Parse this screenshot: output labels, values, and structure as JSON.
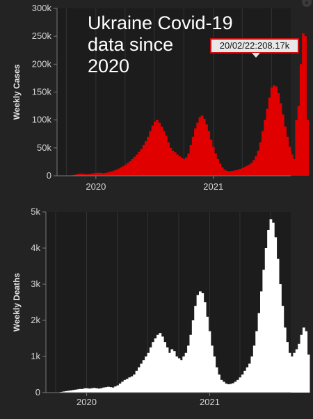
{
  "chart_data": [
    {
      "type": "bar",
      "title": "Ukraine Covid-19\ndata since\n2020",
      "ylabel": "Weekly Cases",
      "xlabel": "",
      "xlim": [
        "2019-09-02",
        "2021-08-23"
      ],
      "ylim": [
        0,
        300000
      ],
      "yticks": [
        0,
        50000,
        100000,
        150000,
        200000,
        250000,
        300000
      ],
      "ytick_labels": [
        "0",
        "50k",
        "100k",
        "150k",
        "200k",
        "250k",
        "300k"
      ],
      "xticks": [
        "2020-01-01",
        "2021-01-01"
      ],
      "xtick_labels": [
        "2020",
        "2021"
      ],
      "tooltip": {
        "date": "20/02/22",
        "value": 208170,
        "label": "20/02/22:208.17k"
      },
      "bar_color": "#e00000",
      "grid": "vertical",
      "x_start": "2019-09-02",
      "x_step_days": 7,
      "values": [
        0,
        0,
        0,
        0,
        200,
        400,
        800,
        1500,
        2500,
        3500,
        4000,
        3800,
        3200,
        3000,
        3500,
        4000,
        4500,
        5000,
        5500,
        5000,
        4500,
        5000,
        6000,
        7000,
        8000,
        9500,
        11000,
        13000,
        15000,
        17500,
        20000,
        23000,
        26000,
        30000,
        34000,
        38000,
        43000,
        48000,
        55000,
        62000,
        70000,
        80000,
        90000,
        97000,
        100000,
        95000,
        88000,
        80000,
        72000,
        60000,
        50000,
        45000,
        42000,
        38000,
        35000,
        32000,
        30000,
        33000,
        40000,
        55000,
        70000,
        85000,
        95000,
        105000,
        108000,
        102000,
        92000,
        80000,
        65000,
        52000,
        40000,
        30000,
        22000,
        15000,
        11000,
        9000,
        8000,
        8500,
        9000,
        10000,
        11000,
        12500,
        14000,
        16000,
        18000,
        20000,
        23000,
        28000,
        35000,
        45000,
        60000,
        80000,
        100000,
        120000,
        140000,
        158000,
        162000,
        160000,
        148000,
        130000,
        110000,
        88000,
        70000,
        52000,
        38000,
        30000,
        100000,
        125000,
        200000,
        255000,
        250000,
        100000
      ]
    },
    {
      "type": "bar",
      "title": "",
      "ylabel": "Weekly Deaths",
      "xlabel": "",
      "xlim": [
        "2019-09-02",
        "2021-08-23"
      ],
      "ylim": [
        0,
        5000
      ],
      "yticks": [
        0,
        1000,
        2000,
        3000,
        4000,
        5000
      ],
      "ytick_labels": [
        "0",
        "1k",
        "2k",
        "3k",
        "4k",
        "5k"
      ],
      "xticks": [
        "2020-01-01",
        "2021-01-01"
      ],
      "xtick_labels": [
        "2020",
        "2021"
      ],
      "bar_color": "#ffffff",
      "grid": "vertical",
      "x_start": "2019-09-02",
      "x_step_days": 7,
      "values": [
        0,
        0,
        0,
        0,
        5,
        10,
        20,
        30,
        40,
        50,
        60,
        70,
        80,
        90,
        100,
        100,
        120,
        120,
        110,
        120,
        130,
        120,
        110,
        120,
        140,
        150,
        160,
        150,
        140,
        170,
        200,
        250,
        300,
        350,
        380,
        420,
        450,
        500,
        600,
        700,
        800,
        900,
        1000,
        1100,
        1250,
        1400,
        1500,
        1600,
        1650,
        1550,
        1400,
        1250,
        1100,
        1200,
        1150,
        1000,
        950,
        900,
        1000,
        1100,
        1300,
        1600,
        2000,
        2400,
        2700,
        2800,
        2750,
        2500,
        2100,
        1700,
        1300,
        1000,
        700,
        500,
        350,
        300,
        250,
        230,
        240,
        260,
        300,
        350,
        420,
        500,
        600,
        700,
        800,
        1000,
        1300,
        1700,
        2200,
        2800,
        3400,
        4000,
        4500,
        4800,
        4700,
        4300,
        3700,
        3000,
        2400,
        1800,
        1400,
        1100,
        1000,
        1100,
        1200,
        1350,
        1600,
        1800,
        1700,
        1050
      ]
    }
  ]
}
